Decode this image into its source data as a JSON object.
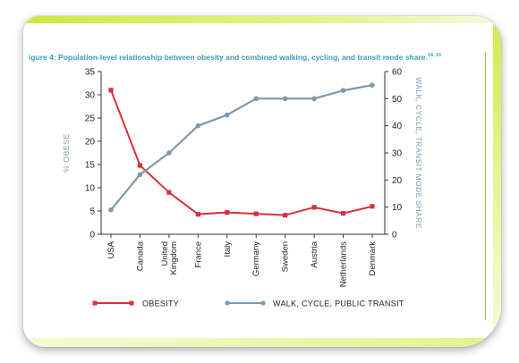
{
  "figure": {
    "title": "igure 4: Population-level relationship between obesity and combined walking, cycling, and transit mode share.",
    "title_sup": "14, 15"
  },
  "colors": {
    "obesity": "#d9303c",
    "transit": "#7d99aa",
    "axis": "#333333",
    "label": "#7d99aa"
  },
  "chart_data": {
    "type": "line",
    "categories": [
      "USA",
      "Canada",
      "United Kingdom",
      "France",
      "Italy",
      "Germany",
      "Sweden",
      "Austria",
      "Netherlands",
      "Denmark"
    ],
    "y_left": {
      "label": "% OBESE",
      "range": [
        0,
        35
      ],
      "ticks": [
        0,
        5,
        10,
        15,
        20,
        25,
        30,
        35
      ]
    },
    "y_right": {
      "label": "WALK, CYCLE, TRANSIT MODE SHARE",
      "range": [
        0,
        60
      ],
      "ticks": [
        0,
        10,
        20,
        30,
        40,
        50,
        60
      ]
    },
    "series": [
      {
        "name": "OBESITY",
        "axis": "left",
        "color": "#d9303c",
        "marker": "square",
        "values": [
          31,
          14.8,
          9,
          4.3,
          4.7,
          4.4,
          4.1,
          5.8,
          4.5,
          6
        ]
      },
      {
        "name": "WALK, CYCLE, PUBLIC TRANSIT",
        "axis": "right",
        "color": "#7d99aa",
        "marker": "circle",
        "values": [
          9,
          22,
          30,
          40,
          44,
          50,
          50,
          50,
          53,
          55
        ]
      }
    ],
    "legend": "bottom",
    "grid": false
  }
}
